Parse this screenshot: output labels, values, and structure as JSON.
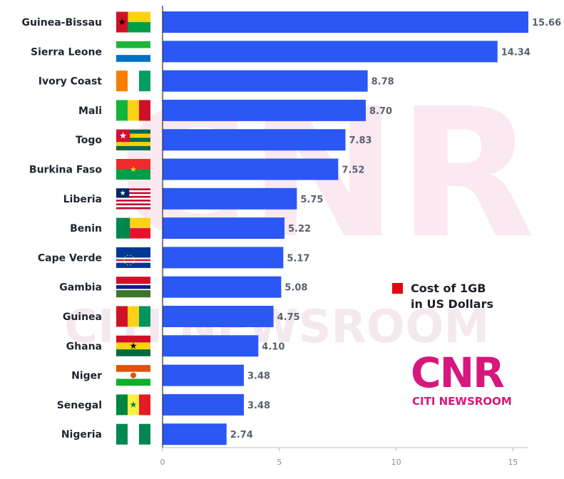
{
  "chart_data": {
    "type": "bar",
    "orientation": "horizontal",
    "categories": [
      "Guinea-Bissau",
      "Sierra Leone",
      "Ivory Coast",
      "Mali",
      "Togo",
      "Burkina Faso",
      "Liberia",
      "Benin",
      "Cape Verde",
      "Gambia",
      "Guinea",
      "Ghana",
      "Niger",
      "Senegal",
      "Nigeria"
    ],
    "values": [
      15.66,
      14.34,
      8.78,
      8.7,
      7.83,
      7.52,
      5.75,
      5.22,
      5.17,
      5.08,
      4.75,
      4.1,
      3.48,
      3.48,
      2.74
    ],
    "value_labels": [
      "15.66",
      "14.34",
      "8.78",
      "8.70",
      "7.83",
      "7.52",
      "5.75",
      "5.22",
      "5.17",
      "5.08",
      "4.75",
      "4.10",
      "3.48",
      "3.48",
      "2.74"
    ],
    "xlim": [
      0,
      15.66
    ],
    "xticks": [
      0,
      5,
      10,
      15
    ],
    "xtick_labels": [
      "0",
      "5",
      "10",
      "15"
    ],
    "bar_color": "#2b57f5",
    "legend": {
      "label": "Cost of 1GB in US Dollars",
      "label_lines": [
        "Cost of 1GB",
        "in US Dollars"
      ],
      "color": "#e60012",
      "position": "right-middle"
    },
    "grid": false
  },
  "flags": [
    "guinea-bissau",
    "sierra-leone",
    "ivory-coast",
    "mali",
    "togo",
    "burkina-faso",
    "liberia",
    "benin",
    "cape-verde",
    "gambia",
    "guinea",
    "ghana",
    "niger",
    "senegal",
    "nigeria"
  ],
  "branding": {
    "logo_text": "CNR",
    "logo_subtitle": "CITI NEWSROOM",
    "color": "#d6177c"
  }
}
